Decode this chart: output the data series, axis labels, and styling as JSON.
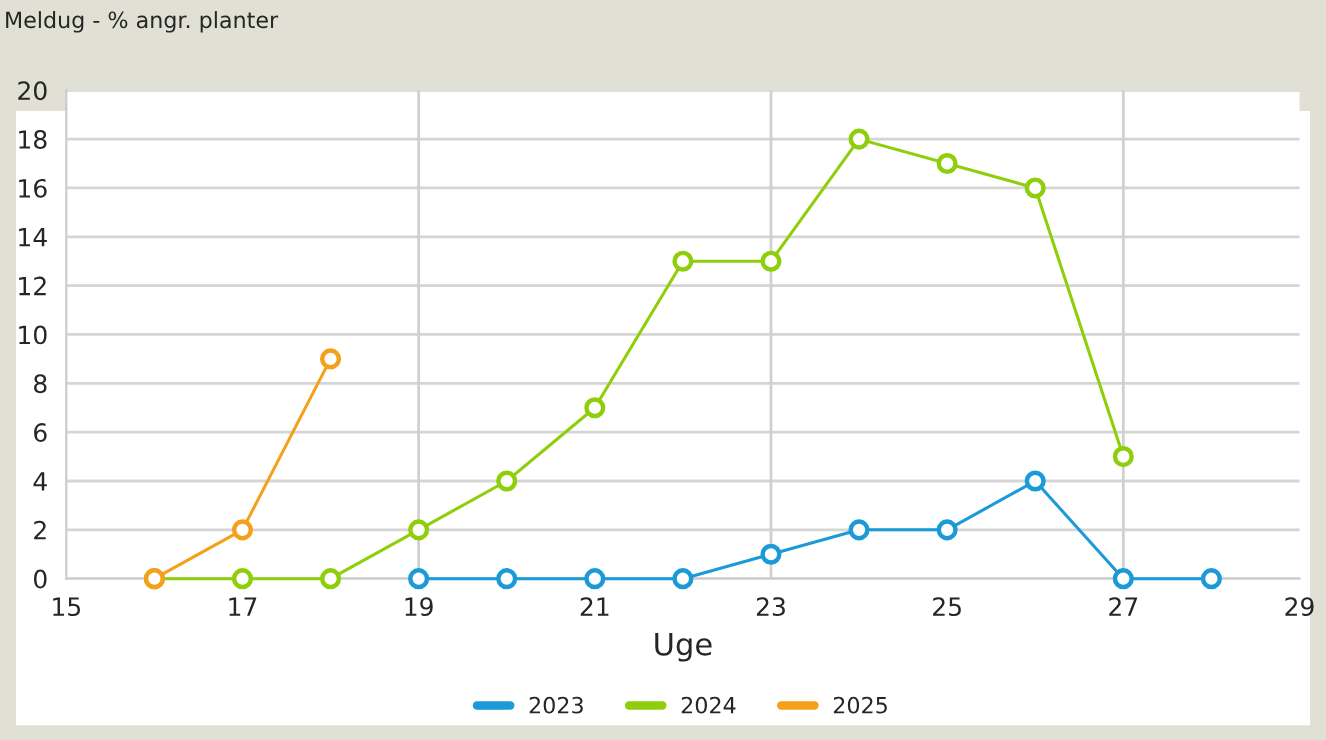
{
  "chart_data": {
    "type": "line",
    "title": "Meldug - % angr. planter",
    "xlabel": "Uge",
    "series": [
      {
        "name": "2023",
        "color": "#1a9ad6",
        "x": [
          19,
          20,
          21,
          22,
          23,
          24,
          25,
          26,
          27,
          28
        ],
        "values": [
          0,
          0,
          0,
          0,
          1,
          2,
          2,
          4,
          0,
          0
        ]
      },
      {
        "name": "2024",
        "color": "#8fce0a",
        "x": [
          16,
          17,
          18,
          19,
          20,
          21,
          22,
          23,
          24,
          25,
          26,
          27
        ],
        "values": [
          0,
          0,
          0,
          2,
          4,
          7,
          13,
          13,
          18,
          17,
          16,
          5
        ]
      },
      {
        "name": "2025",
        "color": "#f5a01a",
        "x": [
          16,
          17,
          18
        ],
        "values": [
          0,
          2,
          9
        ]
      }
    ],
    "xlim": [
      15,
      29
    ],
    "xticks": [
      15,
      17,
      19,
      21,
      23,
      25,
      27,
      29
    ],
    "ylim": [
      0,
      20
    ],
    "yticks": [
      0,
      2,
      4,
      6,
      8,
      10,
      12,
      14,
      16,
      18,
      20
    ],
    "ref_lines": [
      {
        "axis": "x",
        "value": 19,
        "color": "#d0d0d0"
      },
      {
        "axis": "x",
        "value": 23,
        "color": "#d0d0d0"
      },
      {
        "axis": "x",
        "value": 27,
        "color": "#d0d0d0"
      }
    ],
    "grid": "y",
    "legend": "bottom",
    "marker": "circle",
    "line_style": "solid"
  }
}
